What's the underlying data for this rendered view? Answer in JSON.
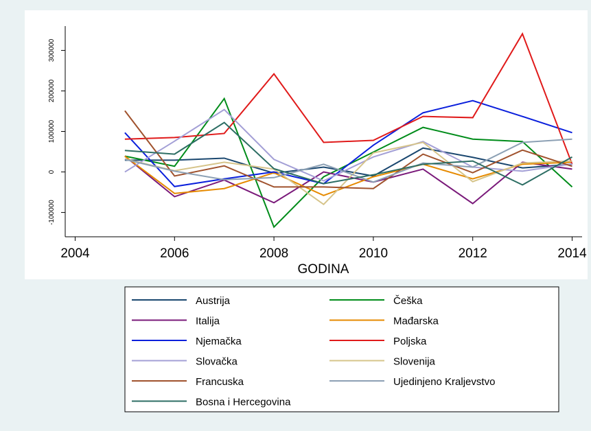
{
  "chart_data": {
    "type": "line",
    "x_label": "GODINA",
    "x": [
      2005,
      2006,
      2007,
      2008,
      2009,
      2010,
      2011,
      2012,
      2013,
      2014
    ],
    "xlim": [
      2003.8,
      2014.2
    ],
    "xticks": [
      2004,
      2006,
      2008,
      2010,
      2012,
      2014
    ],
    "ylim": [
      -160000,
      360000
    ],
    "yticks": [
      -100000,
      0,
      100000,
      200000,
      300000
    ],
    "series": [
      {
        "name": "Austrija",
        "color": "#1a476f",
        "values": [
          29000,
          29000,
          34000,
          -3000,
          12000,
          -10000,
          59000,
          36000,
          10000,
          19000
        ]
      },
      {
        "name": "Češka",
        "color": "#008c1a",
        "values": [
          39000,
          14000,
          181000,
          -136000,
          -12000,
          49000,
          110000,
          81000,
          75000,
          -37000
        ]
      },
      {
        "name": "Italija",
        "color": "#7a1a7a",
        "values": [
          39000,
          -61000,
          -20000,
          -76000,
          0,
          -25000,
          7000,
          -78000,
          24000,
          7000
        ]
      },
      {
        "name": "Mađarska",
        "color": "#e68a00",
        "values": [
          39000,
          -53000,
          -41000,
          -2000,
          -58000,
          -12000,
          19000,
          -17000,
          19000,
          24000
        ]
      },
      {
        "name": "Njemačka",
        "color": "#0a1fdc",
        "values": [
          97000,
          -36000,
          -17000,
          0,
          -29000,
          66000,
          146000,
          176000,
          137000,
          97000
        ]
      },
      {
        "name": "Poljska",
        "color": "#e01a1a",
        "values": [
          81000,
          85000,
          95000,
          242000,
          73000,
          78000,
          137000,
          134000,
          341000,
          19000
        ]
      },
      {
        "name": "Slovačka",
        "color": "#a39fd6",
        "values": [
          0,
          76000,
          154000,
          31000,
          -22000,
          37000,
          75000,
          12000,
          2000,
          20000
        ]
      },
      {
        "name": "Slovenija",
        "color": "#d6c48a",
        "values": [
          32000,
          3000,
          24000,
          7000,
          -80000,
          47000,
          73000,
          -24000,
          22000,
          27000
        ]
      },
      {
        "name": "Francuska",
        "color": "#a0522d",
        "values": [
          151000,
          -10000,
          15000,
          -37000,
          -37000,
          -41000,
          44000,
          -2000,
          54000,
          14000
        ]
      },
      {
        "name": "Ujedinjeno Kraljevstvo",
        "color": "#8ca0b4",
        "values": [
          31000,
          2000,
          -19000,
          -14000,
          19000,
          -25000,
          22000,
          12000,
          73000,
          81000
        ]
      },
      {
        "name": "Bosna i Hercegovina",
        "color": "#2d6e64",
        "values": [
          53000,
          44000,
          122000,
          8000,
          -29000,
          -7000,
          19000,
          27000,
          -32000,
          37000
        ]
      }
    ]
  }
}
